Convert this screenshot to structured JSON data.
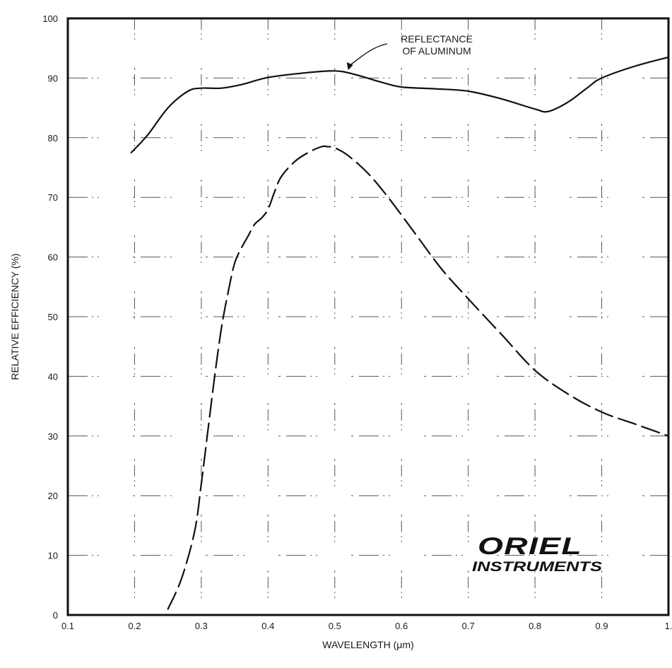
{
  "chart_data": {
    "type": "line",
    "xlabel": "WAVELENGTH (μm)",
    "ylabel": "RELATIVE EFFICIENCY (%)",
    "xlim": [
      0.1,
      1.0
    ],
    "ylim": [
      0,
      100
    ],
    "x_ticks": [
      "0.1",
      "0.2",
      "0.3",
      "0.4",
      "0.5",
      "0.6",
      "0.7",
      "0.8",
      "0.9",
      "1."
    ],
    "y_ticks": [
      "0",
      "10",
      "20",
      "30",
      "40",
      "50",
      "60",
      "70",
      "80",
      "90",
      "100"
    ],
    "grid": true,
    "annotation": {
      "lines": [
        "REFLECTANCE",
        "OF ALUMINUM"
      ],
      "points_to": [
        0.52,
        91
      ]
    },
    "series": [
      {
        "name": "REFLECTANCE OF ALUMINUM",
        "style": "solid",
        "x": [
          0.195,
          0.22,
          0.25,
          0.28,
          0.3,
          0.33,
          0.36,
          0.4,
          0.45,
          0.5,
          0.53,
          0.57,
          0.6,
          0.65,
          0.7,
          0.75,
          0.8,
          0.82,
          0.85,
          0.88,
          0.9,
          0.95,
          1.0
        ],
        "y": [
          77.5,
          80.5,
          85.0,
          87.8,
          88.3,
          88.3,
          88.9,
          90.1,
          90.8,
          91.2,
          90.6,
          89.3,
          88.5,
          88.2,
          87.8,
          86.5,
          84.8,
          84.4,
          86.0,
          88.5,
          90.0,
          92.0,
          93.5
        ]
      },
      {
        "name": "",
        "style": "dashed",
        "x": [
          0.25,
          0.27,
          0.29,
          0.3,
          0.31,
          0.32,
          0.33,
          0.34,
          0.35,
          0.36,
          0.37,
          0.38,
          0.39,
          0.4,
          0.41,
          0.42,
          0.44,
          0.46,
          0.48,
          0.49,
          0.5,
          0.52,
          0.55,
          0.58,
          0.62,
          0.66,
          0.7,
          0.75,
          0.8,
          0.85,
          0.9,
          0.95,
          1.0
        ],
        "y": [
          1,
          6,
          14,
          22,
          31,
          40,
          48,
          54,
          59,
          61.5,
          63.5,
          65.5,
          66.5,
          68,
          71,
          73.5,
          76,
          77.5,
          78.5,
          78.5,
          78.3,
          77,
          74,
          70,
          64,
          58,
          53,
          47,
          41,
          37,
          34,
          32,
          30
        ]
      }
    ]
  },
  "logo": {
    "top": "ORIEL",
    "bottom": "INSTRUMENTS"
  }
}
